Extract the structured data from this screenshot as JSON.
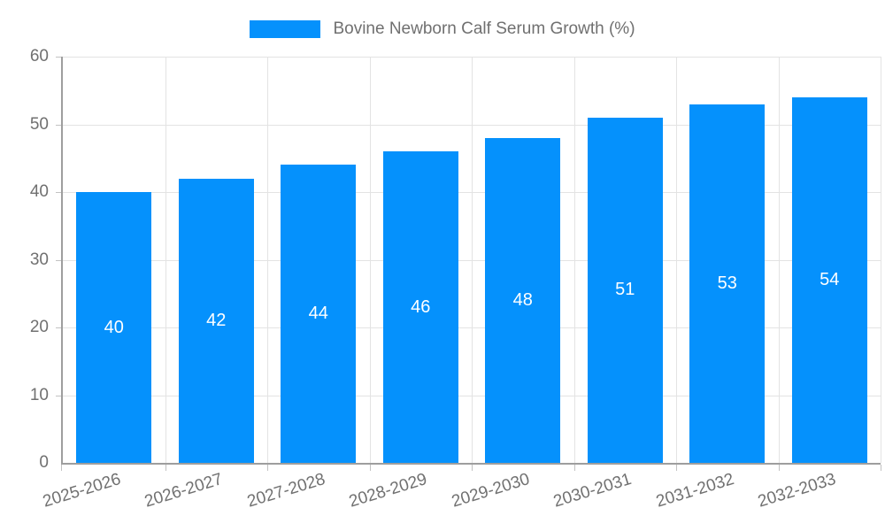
{
  "chart_data": {
    "type": "bar",
    "title": "Bovine Newborn Calf Serum Growth (%)",
    "categories": [
      "2025-2026",
      "2026-2027",
      "2027-2028",
      "2028-2029",
      "2029-2030",
      "2030-2031",
      "2031-2032",
      "2032-2033"
    ],
    "values": [
      40,
      42,
      44,
      46,
      48,
      51,
      53,
      54
    ],
    "xlabel": "",
    "ylabel": "",
    "ylim": [
      0,
      60
    ],
    "y_ticks": [
      0,
      10,
      20,
      30,
      40,
      50,
      60
    ],
    "grid": true,
    "legend_position": "top",
    "value_labels": "inside-center"
  },
  "legend": {
    "label": "Bovine Newborn Calf Serum Growth (%)"
  },
  "colors": {
    "bar": "#0591fc",
    "bar_value_text": "#ffffff",
    "axis_line": "#9e9e9e",
    "gridline": "#e3e3e3",
    "tick_mark": "#c2c2c2",
    "axis_text": "#707070",
    "background": "#ffffff"
  }
}
